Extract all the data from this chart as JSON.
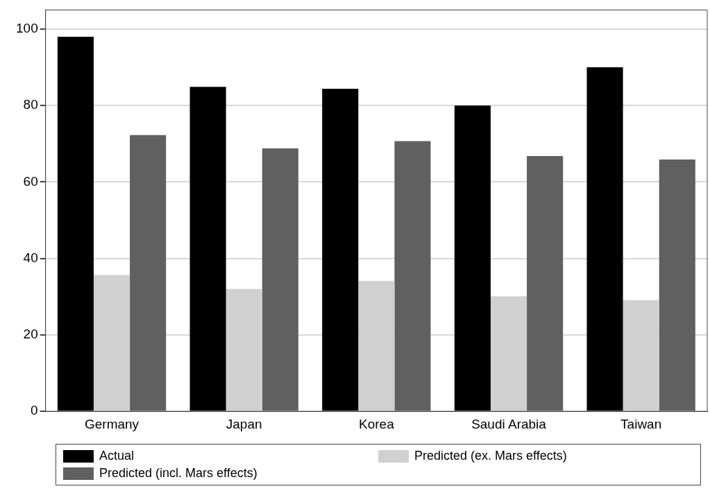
{
  "chart_data": {
    "type": "bar",
    "categories": [
      "Germany",
      "Japan",
      "Korea",
      "Saudi Arabia",
      "Taiwan"
    ],
    "series": [
      {
        "name": "Actual",
        "color": "#000000",
        "values": [
          98,
          84.9,
          84.4,
          80,
          90
        ]
      },
      {
        "name": "Predicted (ex. Mars effects)",
        "color": "#d0d0d0",
        "values": [
          35.7,
          32,
          34.1,
          30.1,
          29.1
        ]
      },
      {
        "name": "Predicted (incl. Mars effects)",
        "color": "#606060",
        "values": [
          72.3,
          68.8,
          70.7,
          66.8,
          65.9
        ]
      }
    ],
    "ylim": [
      0,
      105
    ],
    "yticks": [
      0,
      20,
      40,
      60,
      80,
      100
    ],
    "grid": "y",
    "legend": "bottom"
  }
}
